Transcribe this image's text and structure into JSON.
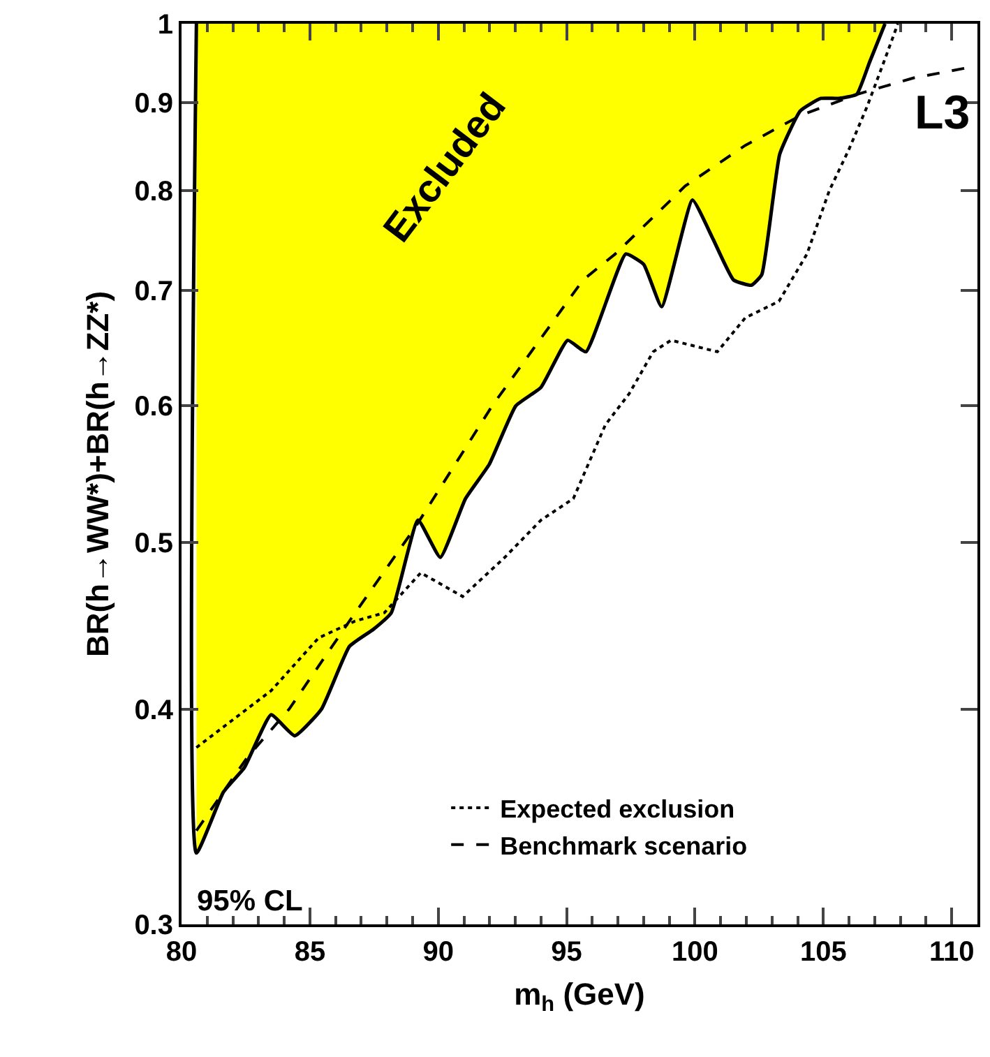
{
  "chart_data": {
    "type": "line",
    "xlabel": "m$_{h}$ (GeV)",
    "ylabel": "BR(h→WW*)+BR(h→ZZ*)",
    "annotations": [
      "Excluded",
      "L3",
      "95% CL"
    ],
    "xlim": [
      80,
      111
    ],
    "xticks": [
      80,
      85,
      90,
      95,
      100,
      105,
      110
    ],
    "ylim": [
      0.3,
      1
    ],
    "yticks": [
      0.3,
      0.4,
      0.5,
      0.6,
      0.7,
      0.8,
      0.9,
      1
    ],
    "log": "y",
    "grid": false,
    "legend": "bottom right",
    "series": [
      {
        "type": "area",
        "color": "#ffff00",
        "x": [
          80.58,
          80.58,
          81.63,
          82.45,
          83.49,
          84.41,
          85.45,
          86.54,
          87.47,
          88.17,
          89.21,
          90.08,
          91.06,
          91.99,
          93.02,
          94.0,
          95.04,
          95.75,
          97.3,
          98.0,
          98.7,
          99.9,
          100.7,
          101.5,
          102.2,
          102.6,
          103.3,
          104.1,
          104.9,
          105.6,
          106.3,
          106.8,
          107.4
        ],
        "values": [
          1.0,
          0.33,
          0.358,
          0.37,
          0.397,
          0.386,
          0.4,
          0.435,
          0.445,
          0.455,
          0.515,
          0.49,
          0.53,
          0.555,
          0.6,
          0.615,
          0.655,
          0.645,
          0.735,
          0.725,
          0.685,
          0.79,
          0.75,
          0.71,
          0.705,
          0.715,
          0.84,
          0.89,
          0.905,
          0.905,
          0.91,
          0.95,
          1.0
        ]
      },
      {
        "name": "Expected exclusion",
        "color": "#000000",
        "line_style": "dotted",
        "x": [
          80.58,
          83.49,
          85.34,
          86.76,
          87.9,
          89.32,
          90.95,
          92.59,
          94.0,
          95.26,
          96.51,
          97.44,
          98.37,
          99.07,
          100.87,
          101.96,
          103.27,
          104.36,
          105.23,
          105.99,
          106.7,
          107.41,
          107.9
        ],
        "values": [
          0.38,
          0.41,
          0.44,
          0.45,
          0.455,
          0.48,
          0.465,
          0.49,
          0.515,
          0.53,
          0.585,
          0.61,
          0.645,
          0.655,
          0.645,
          0.675,
          0.69,
          0.735,
          0.8,
          0.845,
          0.895,
          0.955,
          1.0
        ]
      },
      {
        "name": "Benchmark scenario",
        "color": "#000000",
        "line_style": "dashed",
        "x": [
          80.58,
          82.56,
          84.19,
          86.54,
          89.1,
          92.1,
          95.64,
          96.89,
          99.62,
          101.96,
          104.14,
          106.32,
          108.5,
          110.95
        ],
        "values": [
          0.34,
          0.375,
          0.4,
          0.45,
          0.51,
          0.6,
          0.71,
          0.735,
          0.805,
          0.85,
          0.885,
          0.91,
          0.93,
          0.945
        ]
      }
    ]
  }
}
